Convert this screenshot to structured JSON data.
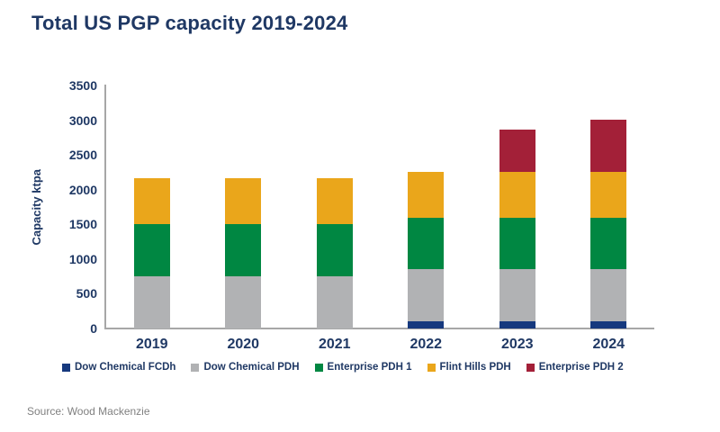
{
  "title": "Total US PGP capacity 2019-2024",
  "source_note": "Source: Wood Mackenzie",
  "colors": {
    "title_text": "#1F3864",
    "axis_line": "#A7A7A7",
    "source_text": "#808080"
  },
  "chart_data": {
    "type": "bar",
    "stacked": true,
    "title": "Total US PGP capacity 2019-2024",
    "xlabel": "",
    "ylabel": "Capacity ktpa",
    "ylim": [
      0,
      3500
    ],
    "yticks": [
      0,
      500,
      1000,
      1500,
      2000,
      2500,
      3000,
      3500
    ],
    "grid": false,
    "legend_position": "bottom",
    "categories": [
      "2019",
      "2020",
      "2021",
      "2022",
      "2023",
      "2024"
    ],
    "series": [
      {
        "name": "Dow Chemical FCDh",
        "color": "#16397E",
        "values": [
          0,
          0,
          0,
          100,
          100,
          100
        ]
      },
      {
        "name": "Dow Chemical PDH",
        "color": "#B1B2B4",
        "values": [
          750,
          750,
          750,
          750,
          750,
          750
        ]
      },
      {
        "name": "Enterprise PDH 1",
        "color": "#008742",
        "values": [
          750,
          750,
          750,
          750,
          750,
          750
        ]
      },
      {
        "name": "Flint Hills PDH",
        "color": "#EAA61B",
        "values": [
          660,
          660,
          660,
          660,
          660,
          660
        ]
      },
      {
        "name": "Enterprise PDH 2",
        "color": "#A32038",
        "values": [
          0,
          0,
          0,
          0,
          600,
          750
        ]
      }
    ],
    "totals": [
      2160,
      2160,
      2160,
      2260,
      2860,
      3010
    ]
  }
}
